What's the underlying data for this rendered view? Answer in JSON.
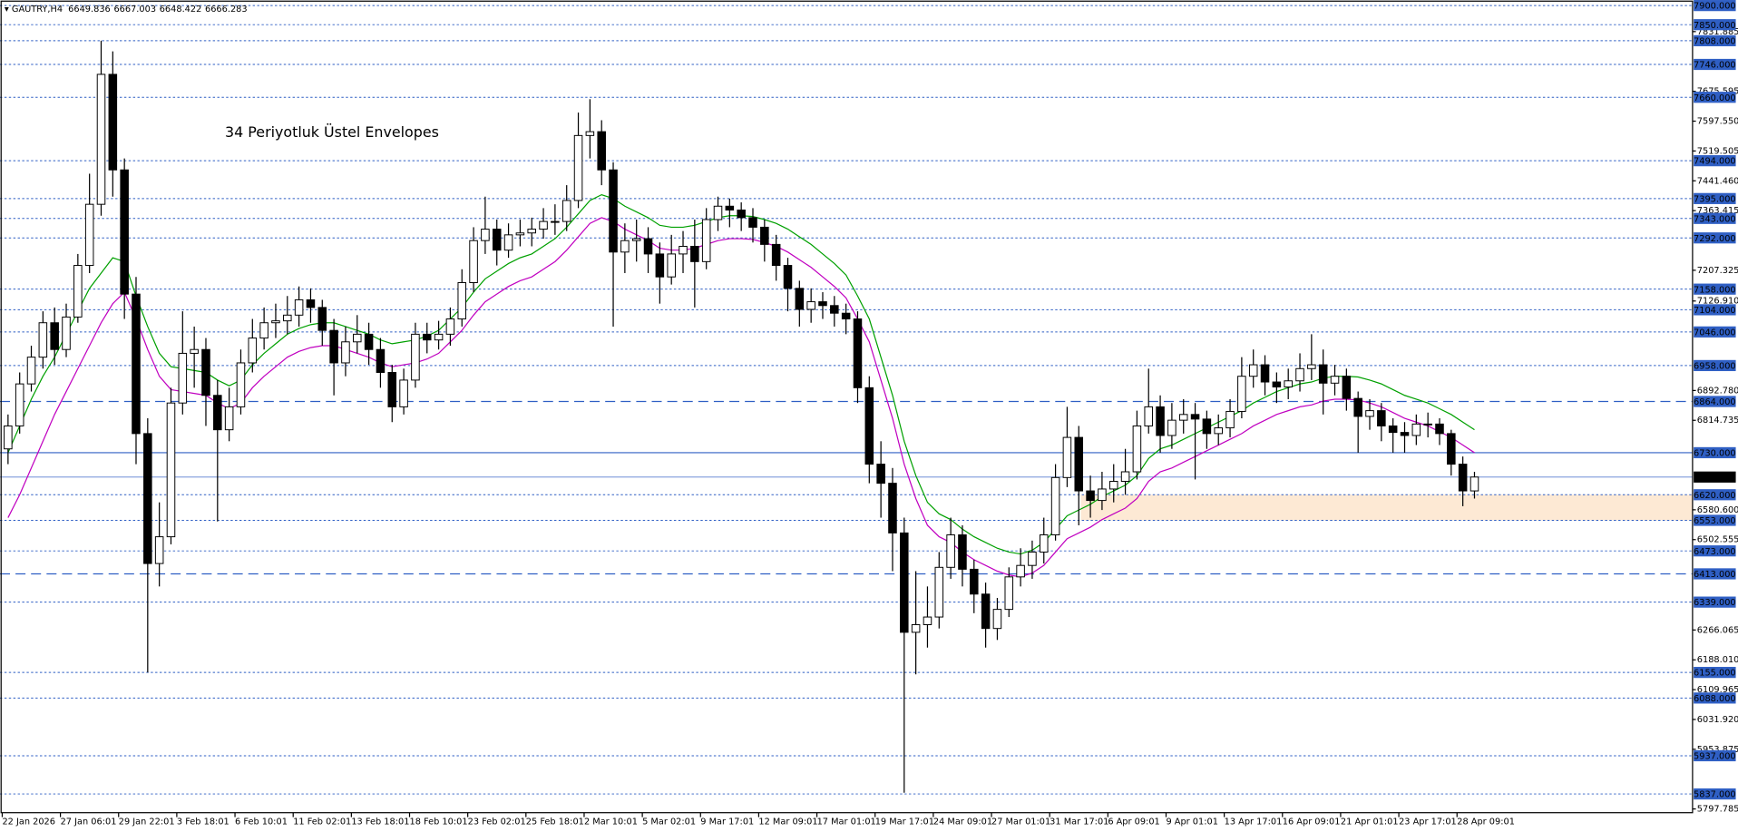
{
  "chart_data": {
    "type": "candlestick",
    "title": "GAUTRY,H4",
    "header_ohlc": [
      6649.836,
      6667.003,
      6648.422,
      6666.283
    ],
    "annotation": "34 Periyotluk Üstel Envelopes",
    "annotation_color": "#3f6fdf",
    "ylim": [
      5788,
      7914.5
    ],
    "yticks": [
      7831.885,
      7675.595,
      {
        "value": 7597.55,
        "label": "7597.550"
      },
      7519.505,
      {
        "value": 7441.46,
        "label": "7441.460"
      },
      7363.415,
      7207.325,
      {
        "value": 7126.91,
        "label": "7126.910"
      },
      {
        "value": 6892.78,
        "label": "6892.780"
      },
      6814.735,
      {
        "value": 6580.6,
        "label": "6580.600"
      },
      6502.555,
      6266.065,
      {
        "value": 6188.01,
        "label": "6188.010"
      },
      6109.965,
      {
        "value": 6031.92,
        "label": "6031.920"
      },
      5953.875,
      5797.785
    ],
    "xticks": [
      {
        "value": 0,
        "label": "22 Jan 2026"
      },
      {
        "value": 5,
        "label": "27 Jan 06:01"
      },
      {
        "value": 10,
        "label": "29 Jan 22:01"
      },
      {
        "value": 15,
        "label": "3 Feb 18:01"
      },
      {
        "value": 20,
        "label": "6 Feb 10:01"
      },
      {
        "value": 25,
        "label": "11 Feb 02:01"
      },
      {
        "value": 30,
        "label": "13 Feb 18:01"
      },
      {
        "value": 35,
        "label": "18 Feb 10:01"
      },
      {
        "value": 40,
        "label": "23 Feb 02:01"
      },
      {
        "value": 45,
        "label": "25 Feb 18:01"
      },
      {
        "value": 50,
        "label": "2 Mar 10:01"
      },
      {
        "value": 55,
        "label": "5 Mar 02:01"
      },
      {
        "value": 60,
        "label": "9 Mar 17:01"
      },
      {
        "value": 65,
        "label": "12 Mar 09:01"
      },
      {
        "value": 70,
        "label": "17 Mar 01:01"
      },
      {
        "value": 75,
        "label": "19 Mar 17:01"
      },
      {
        "value": 80,
        "label": "24 Mar 09:01"
      },
      {
        "value": 85,
        "label": "27 Mar 01:01"
      },
      {
        "value": 90,
        "label": "31 Mar 17:01"
      },
      {
        "value": 95,
        "label": "6 Apr 09:01"
      },
      {
        "value": 100,
        "label": "9 Apr 01:01"
      },
      {
        "value": 105,
        "label": "13 Apr 17:01"
      },
      {
        "value": 110,
        "label": "16 Apr 09:01"
      },
      {
        "value": 115,
        "label": "21 Apr 01:01"
      },
      {
        "value": 120,
        "label": "23 Apr 17:01"
      },
      {
        "value": 125,
        "label": "28 Apr 09:01"
      }
    ],
    "level_color": "#2f5fc4",
    "levels": [
      {
        "value": 7900,
        "label": "7900.000",
        "style": "dotted"
      },
      {
        "value": 7850,
        "label": "7850.000",
        "style": "dotted"
      },
      {
        "value": 7808,
        "label": "7808.000",
        "style": "dotted"
      },
      {
        "value": 7746,
        "label": "7746.000",
        "style": "dotted"
      },
      {
        "value": 7660,
        "label": "7660.000",
        "style": "dotted"
      },
      {
        "value": 7494,
        "label": "7494.000",
        "style": "dotted"
      },
      {
        "value": 7395,
        "label": "7395.000",
        "style": "dotted"
      },
      {
        "value": 7343,
        "label": "7343.000",
        "style": "dotted"
      },
      {
        "value": 7292,
        "label": "7292.000",
        "style": "dotted"
      },
      {
        "value": 7158,
        "label": "7158.000",
        "style": "dotted"
      },
      {
        "value": 7104,
        "label": "7104.000",
        "style": "dotted"
      },
      {
        "value": 7046,
        "label": "7046.000",
        "style": "dotted"
      },
      {
        "value": 6958,
        "label": "6958.000",
        "style": "dotted"
      },
      {
        "value": 6864,
        "label": "6864.000",
        "style": "dashed"
      },
      {
        "value": 6730,
        "label": "6730.000",
        "style": "solid"
      },
      {
        "value": 6620,
        "label": "6620.000",
        "style": "dotted"
      },
      {
        "value": 6553,
        "label": "6553.000",
        "style": "dotted"
      },
      {
        "value": 6473,
        "label": "6473.000",
        "style": "dotted"
      },
      {
        "value": 6413,
        "label": "6413.000",
        "style": "dashed"
      },
      {
        "value": 6339,
        "label": "6339.000",
        "style": "dotted"
      },
      {
        "value": 6155,
        "label": "6155.000",
        "style": "dotted"
      },
      {
        "value": 6088,
        "label": "6088.000",
        "style": "dotted"
      },
      {
        "value": 5937,
        "label": "5937.000",
        "style": "dotted"
      },
      {
        "value": 5837,
        "label": "5837.000",
        "style": "dotted"
      }
    ],
    "current_price": 6666.283,
    "zone": [
      6553,
      6620
    ],
    "zone_color": "#fde9d4",
    "up_color": "#ffffff",
    "down_color": "#000000",
    "open": [
      6740,
      6800,
      6910,
      6980,
      7070,
      7000,
      7085,
      7220,
      7380,
      7720,
      7470,
      7145,
      6780,
      6440,
      6510,
      6860,
      6990,
      7000,
      6880,
      6790,
      6850,
      6965,
      7030,
      7070,
      7075,
      7090,
      7130,
      7110,
      7050,
      6965,
      7020,
      7040,
      7000,
      6940,
      6850,
      6920,
      7040,
      7025,
      7040,
      7080,
      7175,
      7285,
      7315,
      7260,
      7300,
      7305,
      7315,
      7335,
      7335,
      7390,
      7560,
      7570,
      7470,
      7255,
      7285,
      7290,
      7250,
      7190,
      7250,
      7270,
      7230,
      7340,
      7375,
      7365,
      7345,
      7320,
      7275,
      7220,
      7160,
      7105,
      7125,
      7115,
      7095,
      7080,
      6900,
      6700,
      6650,
      6520,
      6260,
      6280,
      6300,
      6430,
      6515,
      6425,
      6360,
      6270,
      6320,
      6405,
      6435,
      6470,
      6515,
      6665,
      6770,
      6630,
      6605,
      6635,
      6655,
      6680,
      6800,
      6850,
      6775,
      6815,
      6830,
      6818,
      6780,
      6795,
      6838,
      6930,
      6960,
      6915,
      6902,
      6918,
      6950,
      6960,
      6912,
      6930,
      6872,
      6825,
      6840,
      6800,
      6783,
      6775,
      6805,
      6805,
      6780,
      6700,
      6630
    ],
    "high": [
      6830,
      6940,
      7010,
      7100,
      7110,
      7120,
      7250,
      7460,
      7808,
      7780,
      7500,
      7190,
      6820,
      6600,
      6900,
      7100,
      7060,
      7030,
      6920,
      6900,
      7000,
      7080,
      7110,
      7120,
      7140,
      7165,
      7160,
      7130,
      7080,
      7060,
      7090,
      7070,
      7030,
      6960,
      6950,
      7070,
      7070,
      7075,
      7110,
      7210,
      7320,
      7400,
      7340,
      7330,
      7340,
      7345,
      7370,
      7380,
      7430,
      7620,
      7655,
      7600,
      7490,
      7330,
      7340,
      7320,
      7280,
      7300,
      7310,
      7340,
      7370,
      7400,
      7395,
      7385,
      7370,
      7340,
      7300,
      7240,
      7180,
      7160,
      7150,
      7140,
      7120,
      7100,
      6930,
      6760,
      6690,
      6560,
      6420,
      6380,
      6470,
      6560,
      6540,
      6450,
      6390,
      6350,
      6430,
      6480,
      6500,
      6560,
      6700,
      6850,
      6800,
      6670,
      6680,
      6700,
      6740,
      6840,
      6950,
      6880,
      6860,
      6870,
      6860,
      6840,
      6830,
      6870,
      6980,
      7000,
      6985,
      6940,
      6950,
      6990,
      7040,
      7000,
      6960,
      6950,
      6890,
      6870,
      6860,
      6820,
      6810,
      6830,
      6835,
      6820,
      6790,
      6720,
      6680
    ],
    "low": [
      6700,
      6780,
      6890,
      6950,
      6960,
      6980,
      7070,
      7200,
      7350,
      7400,
      7080,
      6700,
      6155,
      6380,
      6490,
      6830,
      6900,
      6800,
      6550,
      6760,
      6830,
      6940,
      7000,
      7030,
      7040,
      7060,
      7070,
      7010,
      6880,
      6930,
      6990,
      6960,
      6900,
      6810,
      6830,
      6900,
      6990,
      7000,
      7010,
      7060,
      7150,
      7250,
      7220,
      7240,
      7270,
      7270,
      7290,
      7300,
      7310,
      7370,
      7500,
      7430,
      7060,
      7200,
      7230,
      7200,
      7120,
      7170,
      7200,
      7110,
      7210,
      7310,
      7320,
      7310,
      7280,
      7230,
      7180,
      7100,
      7060,
      7070,
      7080,
      7060,
      7040,
      6860,
      6650,
      6560,
      6420,
      5840,
      6150,
      6220,
      6270,
      6400,
      6380,
      6310,
      6220,
      6240,
      6300,
      6380,
      6400,
      6440,
      6500,
      6640,
      6540,
      6560,
      6580,
      6600,
      6620,
      6660,
      6780,
      6730,
      6740,
      6780,
      6660,
      6740,
      6750,
      6770,
      6820,
      6900,
      6880,
      6860,
      6870,
      6890,
      6920,
      6830,
      6880,
      6840,
      6730,
      6790,
      6760,
      6730,
      6730,
      6750,
      6770,
      6750,
      6670,
      6590,
      6610
    ],
    "close": [
      6800,
      6910,
      6980,
      7070,
      7000,
      7085,
      7220,
      7380,
      7720,
      7470,
      7145,
      6780,
      6440,
      6510,
      6860,
      6990,
      7000,
      6880,
      6790,
      6850,
      6965,
      7030,
      7070,
      7075,
      7090,
      7130,
      7110,
      7050,
      6965,
      7020,
      7040,
      7000,
      6940,
      6850,
      6920,
      7040,
      7025,
      7040,
      7080,
      7175,
      7285,
      7315,
      7260,
      7300,
      7305,
      7315,
      7335,
      7335,
      7390,
      7560,
      7570,
      7470,
      7255,
      7285,
      7290,
      7250,
      7190,
      7250,
      7270,
      7230,
      7340,
      7375,
      7365,
      7345,
      7320,
      7275,
      7220,
      7160,
      7105,
      7125,
      7115,
      7095,
      7080,
      6900,
      6700,
      6650,
      6520,
      6260,
      6280,
      6300,
      6430,
      6515,
      6425,
      6360,
      6270,
      6320,
      6405,
      6435,
      6470,
      6515,
      6665,
      6770,
      6630,
      6605,
      6635,
      6655,
      6680,
      6800,
      6850,
      6775,
      6815,
      6830,
      6818,
      6780,
      6795,
      6838,
      6930,
      6960,
      6915,
      6902,
      6918,
      6950,
      6960,
      6912,
      6930,
      6872,
      6825,
      6840,
      6800,
      6783,
      6775,
      6805,
      6805,
      6780,
      6700,
      6630,
      6666.283
    ],
    "lines": [
      {
        "color": "#00a000",
        "values": [
          6730,
          6800,
          6870,
          6930,
          6980,
          7040,
          7100,
          7160,
          7200,
          7240,
          7230,
          7140,
          7060,
          6990,
          6955,
          6950,
          6945,
          6940,
          6920,
          6905,
          6920,
          6960,
          6990,
          7015,
          7040,
          7055,
          7065,
          7070,
          7070,
          7060,
          7050,
          7040,
          7025,
          7015,
          7020,
          7025,
          7035,
          7050,
          7080,
          7110,
          7150,
          7185,
          7205,
          7225,
          7240,
          7250,
          7270,
          7290,
          7320,
          7355,
          7390,
          7405,
          7395,
          7375,
          7360,
          7345,
          7325,
          7320,
          7320,
          7325,
          7335,
          7345,
          7350,
          7350,
          7348,
          7340,
          7330,
          7315,
          7295,
          7275,
          7250,
          7225,
          7195,
          7140,
          7080,
          6980,
          6880,
          6760,
          6670,
          6600,
          6570,
          6555,
          6530,
          6510,
          6495,
          6480,
          6470,
          6465,
          6475,
          6495,
          6530,
          6565,
          6580,
          6595,
          6615,
          6630,
          6645,
          6670,
          6715,
          6740,
          6750,
          6765,
          6780,
          6795,
          6810,
          6825,
          6840,
          6860,
          6875,
          6890,
          6900,
          6910,
          6915,
          6925,
          6930,
          6930,
          6928,
          6920,
          6910,
          6895,
          6880,
          6870,
          6860,
          6845,
          6830,
          6810,
          6790
        ]
      },
      {
        "color": "#c000c0",
        "values": [
          6560,
          6620,
          6690,
          6760,
          6830,
          6890,
          6950,
          7010,
          7070,
          7120,
          7150,
          7080,
          7000,
          6930,
          6895,
          6890,
          6885,
          6880,
          6860,
          6845,
          6860,
          6900,
          6930,
          6955,
          6980,
          6995,
          7005,
          7010,
          7010,
          7000,
          6990,
          6980,
          6965,
          6955,
          6960,
          6965,
          6975,
          6990,
          7020,
          7050,
          7090,
          7125,
          7145,
          7165,
          7180,
          7190,
          7210,
          7230,
          7260,
          7295,
          7330,
          7345,
          7335,
          7315,
          7300,
          7285,
          7265,
          7260,
          7260,
          7265,
          7275,
          7285,
          7290,
          7290,
          7288,
          7280,
          7270,
          7255,
          7235,
          7215,
          7190,
          7165,
          7135,
          7080,
          7020,
          6920,
          6820,
          6700,
          6610,
          6540,
          6510,
          6495,
          6470,
          6450,
          6435,
          6420,
          6410,
          6405,
          6415,
          6435,
          6470,
          6505,
          6520,
          6535,
          6555,
          6570,
          6585,
          6610,
          6655,
          6680,
          6690,
          6705,
          6720,
          6735,
          6750,
          6765,
          6780,
          6800,
          6815,
          6830,
          6840,
          6850,
          6855,
          6865,
          6870,
          6870,
          6868,
          6860,
          6850,
          6835,
          6820,
          6810,
          6800,
          6785,
          6770,
          6750,
          6730
        ]
      }
    ]
  }
}
